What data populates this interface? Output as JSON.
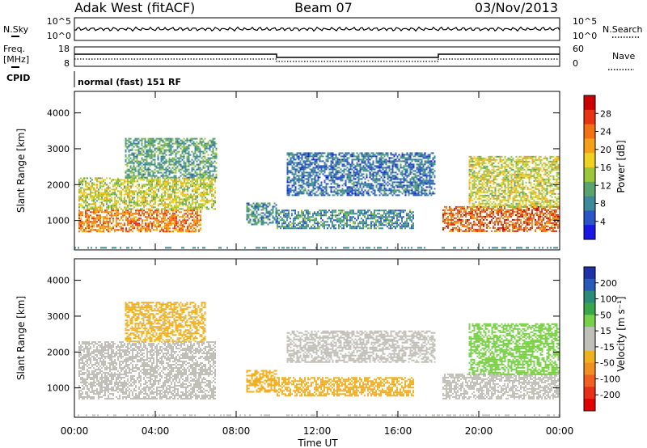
{
  "header": {
    "station": "Adak West (fitACF)",
    "beam": "Beam 07",
    "date": "03/Nov/2013"
  },
  "panels": {
    "noise": {
      "left_label": "N.Sky",
      "left_ticks": [
        "10^5",
        "10^0"
      ],
      "right_label": "N.Search",
      "right_ticks": [
        "10^5",
        "10^0"
      ]
    },
    "freq": {
      "left_label_1": "Freq.",
      "left_label_2": "[MHz]",
      "left_ticks": [
        "18",
        "8"
      ],
      "right_label": "Nave",
      "right_ticks": [
        "60",
        "0"
      ]
    },
    "cpid": {
      "label": "CPID",
      "text": "normal (fast) 151 RF"
    }
  },
  "axes": {
    "xlabel": "Time UT",
    "ylabel": "Slant Range [km]",
    "x_tick_labels": [
      "00:00",
      "04:00",
      "08:00",
      "12:00",
      "16:00",
      "20:00",
      "00:00"
    ],
    "y_tick_labels": [
      "1000",
      "2000",
      "3000",
      "4000"
    ]
  },
  "colorbars": {
    "power": {
      "label": "Power [dB]",
      "ticks": [
        "4",
        "8",
        "12",
        "16",
        "20",
        "24",
        "28"
      ],
      "colors": [
        "#1a16e6",
        "#2a55c8",
        "#3f8a9a",
        "#5aa46e",
        "#9ac83a",
        "#f0d020",
        "#f5a018",
        "#f47014",
        "#e83214",
        "#cc0000"
      ]
    },
    "velocity": {
      "label": "Velocity [m s⁻¹]",
      "ticks": [
        "200",
        "100",
        "50",
        "15",
        "-15",
        "-50",
        "-100",
        "-200"
      ],
      "colors": [
        "#2030a8",
        "#2a5ab8",
        "#2c8a78",
        "#3aa64a",
        "#78d048",
        "#c0c0b8",
        "#c0c0b8",
        "#f0b020",
        "#f09020",
        "#f06020",
        "#e83018",
        "#e00000"
      ]
    }
  },
  "chart_data": [
    {
      "type": "heatmap",
      "name": "power",
      "xlabel": "Time UT",
      "ylabel": "Slant Range [km]",
      "xlim": [
        0,
        24
      ],
      "ylim": [
        180,
        4600
      ],
      "units": "dB",
      "regions": [
        {
          "t": [
            0.2,
            6.2
          ],
          "r": [
            700,
            1300
          ],
          "level": 24
        },
        {
          "t": [
            0.2,
            7.0
          ],
          "r": [
            1300,
            2200
          ],
          "level": 16
        },
        {
          "t": [
            2.5,
            7.0
          ],
          "r": [
            2200,
            3300
          ],
          "level": 10
        },
        {
          "t": [
            8.5,
            10.0
          ],
          "r": [
            900,
            1500
          ],
          "level": 8
        },
        {
          "t": [
            10.0,
            16.8
          ],
          "r": [
            800,
            1300
          ],
          "level": 8
        },
        {
          "t": [
            10.5,
            17.8
          ],
          "r": [
            1700,
            2900
          ],
          "level": 6
        },
        {
          "t": [
            18.2,
            24.0
          ],
          "r": [
            700,
            1400
          ],
          "level": 26
        },
        {
          "t": [
            19.5,
            24.0
          ],
          "r": [
            1400,
            2800
          ],
          "level": 16
        }
      ]
    },
    {
      "type": "heatmap",
      "name": "velocity",
      "xlabel": "Time UT",
      "ylabel": "Slant Range [km]",
      "xlim": [
        0,
        24
      ],
      "ylim": [
        180,
        4600
      ],
      "units": "m s^-1",
      "regions": [
        {
          "t": [
            0.2,
            7.0
          ],
          "r": [
            700,
            2300
          ],
          "level": 0
        },
        {
          "t": [
            2.5,
            6.5
          ],
          "r": [
            2300,
            3400
          ],
          "level": -20
        },
        {
          "t": [
            8.5,
            10.0
          ],
          "r": [
            900,
            1500
          ],
          "level": -40
        },
        {
          "t": [
            10.0,
            16.8
          ],
          "r": [
            800,
            1300
          ],
          "level": -40
        },
        {
          "t": [
            10.5,
            17.8
          ],
          "r": [
            1700,
            2600
          ],
          "level": 0
        },
        {
          "t": [
            18.2,
            24.0
          ],
          "r": [
            700,
            1400
          ],
          "level": 0
        },
        {
          "t": [
            19.5,
            24.0
          ],
          "r": [
            1400,
            2800
          ],
          "level": 30
        }
      ]
    }
  ]
}
